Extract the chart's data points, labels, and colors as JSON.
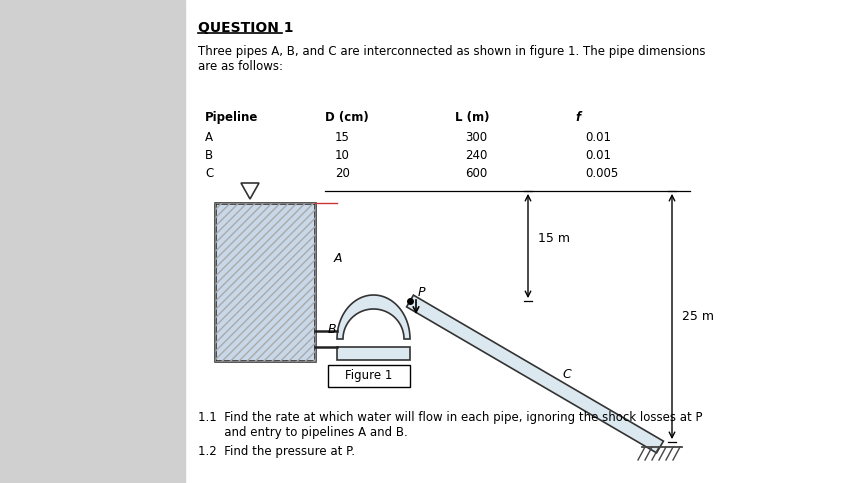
{
  "title": "QUESTION 1",
  "intro_text": "Three pipes A, B, and C are interconnected as shown in figure 1. The pipe dimensions\nare as follows:",
  "table_headers": [
    "Pipeline",
    "D (cm)",
    "L (m)",
    "f"
  ],
  "table_data": [
    [
      "A",
      "15",
      "300",
      "0.01"
    ],
    [
      "B",
      "10",
      "240",
      "0.01"
    ],
    [
      "C",
      "20",
      "600",
      "0.005"
    ]
  ],
  "fig_label": "Figure 1",
  "dim_15m": "15 m",
  "dim_25m": "25 m",
  "label_A": "A",
  "label_B": "B",
  "label_C": "C",
  "label_P": "P",
  "q1_1": "1.1  Find the rate at which water will flow in each pipe, ignoring the shock losses at P\n       and entry to pipelines A and B.",
  "q1_2": "1.2  Find the pressure at P.",
  "bg_color": "#ffffff",
  "left_panel_color": "#d0d0d0",
  "tank_fill_color": "#c8d8e8",
  "tank_border_color": "#222222",
  "pipe_fill_color": "#dce8f0",
  "pipe_border_color": "#333333"
}
